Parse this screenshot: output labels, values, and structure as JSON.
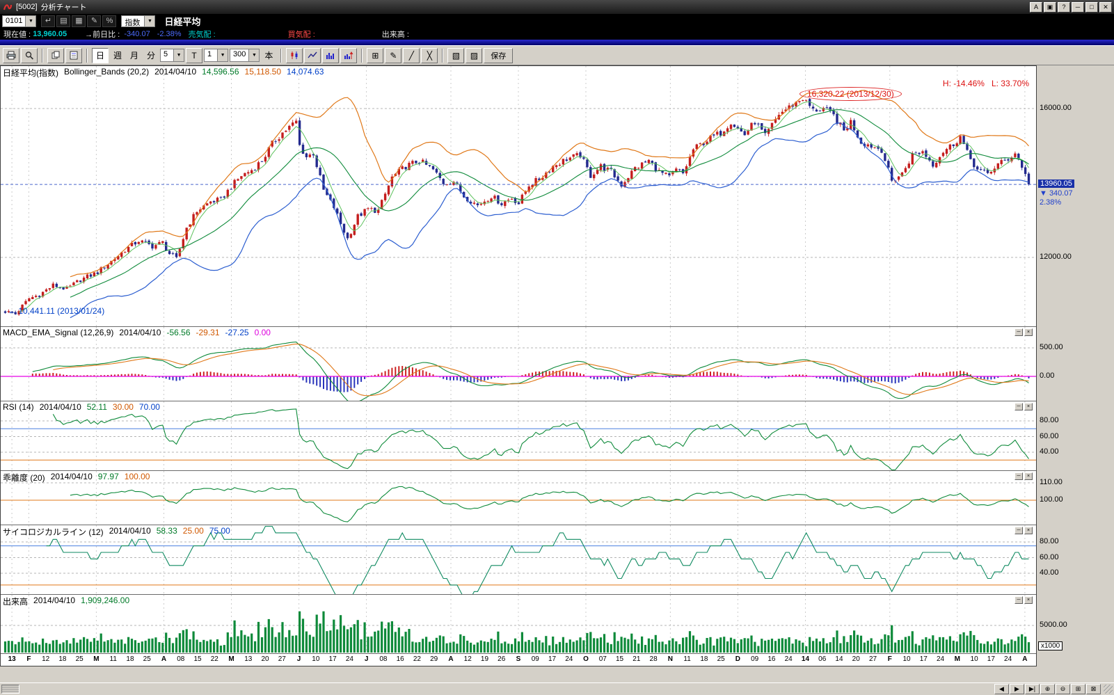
{
  "window": {
    "code": "[5002]",
    "title": "分析チャート",
    "buttons": [
      {
        "n": "font-size-button",
        "g": "A"
      },
      {
        "n": "window-style-button",
        "g": "▣"
      },
      {
        "n": "help-button",
        "g": "?"
      },
      {
        "n": "minimize-button",
        "g": "─"
      },
      {
        "n": "maximize-button",
        "g": "□"
      },
      {
        "n": "close-button",
        "g": "✕"
      }
    ]
  },
  "menubar": {
    "preset": "0101",
    "category": "指数",
    "symbol": "日経平均",
    "icons": [
      {
        "n": "return-icon",
        "g": "↵"
      },
      {
        "n": "list-icon",
        "g": "▤"
      },
      {
        "n": "board-icon",
        "g": "▦"
      },
      {
        "n": "edit-icon",
        "g": "✎"
      },
      {
        "n": "percent-icon",
        "g": "%"
      }
    ]
  },
  "infobar": {
    "current_label": "現在値 :",
    "current_value": "13,960.05",
    "change_label": "→前日比 :",
    "change_value": "-340.07",
    "change_pct": "-2.38%",
    "ask_label": "売気配 :",
    "bid_label": "買気配 :",
    "volume_label": "出来高 :"
  },
  "toolbar": {
    "day": "日",
    "week": "週",
    "month": "月",
    "minute": "分",
    "minute_unit": "5",
    "tick": "T",
    "interval": "1",
    "bars": "300",
    "bars_unit": "本",
    "save": "保存"
  },
  "icons": {
    "chevron_down": "▼",
    "grid": "⊞",
    "pencil": "✎",
    "trendline": "╱",
    "eraser": "╳",
    "layout_a": "▧",
    "layout_b": "▨"
  },
  "panel_controls": {
    "min": "─",
    "close": "×"
  },
  "panels": {
    "main": {
      "name": "日経平均(指数)",
      "study": "Bollinger_Bands (20,2)",
      "date": "2014/04/10",
      "values": [
        {
          "t": "14,596.56",
          "c": "green"
        },
        {
          "t": "15,118.50",
          "c": "orange"
        },
        {
          "t": "14,074.63",
          "c": "blue"
        }
      ],
      "high_low": "H: -14.46%   L: 33.70%",
      "ann_high": "16,320.22 (2013/12/30)",
      "ann_low": "← 10,441.11 (2013/01/24)",
      "price_tag": "13960.05",
      "change_tag": "▼ 340.07",
      "pct_tag": "2.38%",
      "y_labels": [
        {
          "t": "16000.00",
          "v": 16000
        },
        {
          "t": "12000.00",
          "v": 12000
        }
      ]
    },
    "macd": {
      "name": "MACD_EMA_Signal (12,26,9)",
      "date": "2014/04/10",
      "values": [
        {
          "t": "-56.56",
          "c": "green"
        },
        {
          "t": "-29.31",
          "c": "orange"
        },
        {
          "t": "-27.25",
          "c": "blue"
        },
        {
          "t": "0.00",
          "c": "magenta"
        }
      ],
      "y_labels": [
        {
          "t": "500.00",
          "v": 500
        },
        {
          "t": "0.00",
          "v": 0
        }
      ]
    },
    "rsi": {
      "name": "RSI (14)",
      "date": "2014/04/10",
      "values": [
        {
          "t": "52.11",
          "c": "green"
        },
        {
          "t": "30.00",
          "c": "orange"
        },
        {
          "t": "70.00",
          "c": "blue"
        }
      ],
      "y_labels": [
        {
          "t": "80.00",
          "v": 80
        },
        {
          "t": "60.00",
          "v": 60
        },
        {
          "t": "40.00",
          "v": 40
        }
      ]
    },
    "kairi": {
      "name": "乖離度 (20)",
      "date": "2014/04/10",
      "values": [
        {
          "t": "97.97",
          "c": "green"
        },
        {
          "t": "100.00",
          "c": "orange"
        }
      ],
      "y_labels": [
        {
          "t": "110.00",
          "v": 110
        },
        {
          "t": "100.00",
          "v": 100
        }
      ]
    },
    "psych": {
      "name": "サイコロジカルライン (12)",
      "date": "2014/04/10",
      "values": [
        {
          "t": "58.33",
          "c": "green"
        },
        {
          "t": "25.00",
          "c": "orange"
        },
        {
          "t": "75.00",
          "c": "blue"
        }
      ],
      "y_labels": [
        {
          "t": "80.00",
          "v": 80
        },
        {
          "t": "60.00",
          "v": 60
        },
        {
          "t": "40.00",
          "v": 40
        }
      ]
    },
    "vol": {
      "name": "出来高",
      "date": "2014/04/10",
      "values": [
        {
          "t": "1,909,246.00",
          "c": "green"
        }
      ],
      "y_labels": [
        {
          "t": "5000.00",
          "v": 5000
        }
      ],
      "unit": "x1000"
    }
  },
  "xaxis": {
    "labels": [
      {
        "t": "13",
        "m": 1
      },
      {
        "t": "F",
        "m": 1
      },
      {
        "t": "12",
        "m": 0
      },
      {
        "t": "18",
        "m": 0
      },
      {
        "t": "25",
        "m": 0
      },
      {
        "t": "M",
        "m": 1
      },
      {
        "t": "11",
        "m": 0
      },
      {
        "t": "18",
        "m": 0
      },
      {
        "t": "25",
        "m": 0
      },
      {
        "t": "A",
        "m": 1
      },
      {
        "t": "08",
        "m": 0
      },
      {
        "t": "15",
        "m": 0
      },
      {
        "t": "22",
        "m": 0
      },
      {
        "t": "M",
        "m": 1
      },
      {
        "t": "13",
        "m": 0
      },
      {
        "t": "20",
        "m": 0
      },
      {
        "t": "27",
        "m": 0
      },
      {
        "t": "J",
        "m": 1
      },
      {
        "t": "10",
        "m": 0
      },
      {
        "t": "17",
        "m": 0
      },
      {
        "t": "24",
        "m": 0
      },
      {
        "t": "J",
        "m": 1
      },
      {
        "t": "08",
        "m": 0
      },
      {
        "t": "16",
        "m": 0
      },
      {
        "t": "22",
        "m": 0
      },
      {
        "t": "29",
        "m": 0
      },
      {
        "t": "A",
        "m": 1
      },
      {
        "t": "12",
        "m": 0
      },
      {
        "t": "19",
        "m": 0
      },
      {
        "t": "26",
        "m": 0
      },
      {
        "t": "S",
        "m": 1
      },
      {
        "t": "09",
        "m": 0
      },
      {
        "t": "17",
        "m": 0
      },
      {
        "t": "24",
        "m": 0
      },
      {
        "t": "O",
        "m": 1
      },
      {
        "t": "07",
        "m": 0
      },
      {
        "t": "15",
        "m": 0
      },
      {
        "t": "21",
        "m": 0
      },
      {
        "t": "28",
        "m": 0
      },
      {
        "t": "N",
        "m": 1
      },
      {
        "t": "11",
        "m": 0
      },
      {
        "t": "18",
        "m": 0
      },
      {
        "t": "25",
        "m": 0
      },
      {
        "t": "D",
        "m": 1
      },
      {
        "t": "09",
        "m": 0
      },
      {
        "t": "16",
        "m": 0
      },
      {
        "t": "24",
        "m": 0
      },
      {
        "t": "14",
        "m": 1
      },
      {
        "t": "06",
        "m": 0
      },
      {
        "t": "14",
        "m": 0
      },
      {
        "t": "20",
        "m": 0
      },
      {
        "t": "27",
        "m": 0
      },
      {
        "t": "F",
        "m": 1
      },
      {
        "t": "10",
        "m": 0
      },
      {
        "t": "17",
        "m": 0
      },
      {
        "t": "24",
        "m": 0
      },
      {
        "t": "M",
        "m": 1
      },
      {
        "t": "10",
        "m": 0
      },
      {
        "t": "17",
        "m": 0
      },
      {
        "t": "24",
        "m": 0
      },
      {
        "t": "A",
        "m": 1
      }
    ]
  },
  "statusbar": {
    "buttons": [
      {
        "n": "scroll-left-button",
        "g": "◀"
      },
      {
        "n": "scroll-right-button",
        "g": "▶"
      },
      {
        "n": "jump-latest-button",
        "g": "▶|"
      },
      {
        "n": "zoom-in-button",
        "g": "⊕"
      },
      {
        "n": "zoom-out-button",
        "g": "⊖"
      },
      {
        "n": "grid-toggle-button",
        "g": "⊞"
      },
      {
        "n": "fit-window-button",
        "g": "⊠"
      }
    ]
  },
  "chart_data": {
    "type": "candlestick",
    "symbol": "日経平均(指数)",
    "bars": 300,
    "last_close": 13960.05,
    "last_change": -340.07,
    "last_change_pct": -2.38,
    "last_volume_x1000": 1909.246,
    "annotations": {
      "high": {
        "value": 16320.22,
        "date": "2013/12/30"
      },
      "low": {
        "value": 10441.11,
        "date": "2013/01/24"
      },
      "pct_from_high": -14.46,
      "pct_from_low": 33.7
    },
    "studies": {
      "bollinger": {
        "period": 20,
        "sigma": 2,
        "mid": 14596.56,
        "upper": 15118.5,
        "lower": 14074.63
      },
      "macd": {
        "fast": 12,
        "slow": 26,
        "signal": 9,
        "macd_value": -56.56,
        "signal_value": -29.31,
        "histogram": -27.25,
        "zero": 0
      },
      "rsi": {
        "period": 14,
        "value": 52.11,
        "lower": 30,
        "upper": 70
      },
      "kairi": {
        "period": 20,
        "value": 97.97,
        "base": 100
      },
      "psychological": {
        "period": 12,
        "value": 58.33,
        "lower": 25,
        "upper": 75
      },
      "volume": {
        "value": 1909246
      }
    },
    "axes": {
      "main": {
        "p1": [
          16000,
          61
        ],
        "p2": [
          12000,
          275
        ],
        "grid": [
          16000,
          12000
        ]
      },
      "macd": {
        "p1": [
          500,
          30
        ],
        "p2": [
          0,
          71
        ],
        "grid": [
          500
        ]
      },
      "rsi": {
        "p1": [
          80,
          28
        ],
        "p2": [
          40,
          73
        ],
        "grid": [
          80,
          60,
          40
        ]
      },
      "kairi": {
        "p1": [
          110,
          17
        ],
        "p2": [
          100,
          42
        ],
        "grid": [
          110,
          100
        ]
      },
      "psych": {
        "p1": [
          80,
          24
        ],
        "p2": [
          40,
          69
        ],
        "grid": [
          80,
          60,
          40
        ]
      },
      "vol": {
        "p1": [
          5000,
          44
        ],
        "p2": [
          0,
          83
        ],
        "grid": [
          5000
        ]
      }
    },
    "price_keypoints": [
      [
        0,
        10550
      ],
      [
        3,
        10480
      ],
      [
        7,
        10900
      ],
      [
        10,
        11000
      ],
      [
        14,
        11250
      ],
      [
        18,
        11150
      ],
      [
        22,
        11400
      ],
      [
        27,
        11600
      ],
      [
        31,
        11900
      ],
      [
        35,
        12200
      ],
      [
        39,
        12450
      ],
      [
        43,
        12300
      ],
      [
        46,
        12400
      ],
      [
        48,
        12100
      ],
      [
        50,
        11950
      ],
      [
        53,
        12800
      ],
      [
        56,
        13250
      ],
      [
        60,
        13500
      ],
      [
        63,
        13550
      ],
      [
        66,
        13900
      ],
      [
        69,
        14200
      ],
      [
        72,
        14350
      ],
      [
        75,
        14600
      ],
      [
        78,
        15050
      ],
      [
        81,
        15350
      ],
      [
        85,
        15650
      ],
      [
        86,
        15000
      ],
      [
        88,
        14700
      ],
      [
        90,
        14800
      ],
      [
        93,
        13800
      ],
      [
        96,
        13350
      ],
      [
        98,
        12900
      ],
      [
        100,
        12500
      ],
      [
        103,
        13100
      ],
      [
        106,
        13300
      ],
      [
        109,
        13250
      ],
      [
        113,
        14150
      ],
      [
        117,
        14450
      ],
      [
        121,
        14600
      ],
      [
        125,
        14350
      ],
      [
        128,
        14000
      ],
      [
        131,
        14050
      ],
      [
        134,
        13650
      ],
      [
        138,
        13400
      ],
      [
        142,
        13650
      ],
      [
        145,
        13450
      ],
      [
        148,
        13600
      ],
      [
        150,
        13450
      ],
      [
        153,
        13950
      ],
      [
        156,
        14100
      ],
      [
        160,
        14450
      ],
      [
        164,
        14650
      ],
      [
        168,
        14750
      ],
      [
        171,
        14200
      ],
      [
        174,
        14450
      ],
      [
        177,
        14300
      ],
      [
        180,
        13950
      ],
      [
        184,
        14400
      ],
      [
        188,
        14600
      ],
      [
        191,
        14300
      ],
      [
        194,
        14150
      ],
      [
        196,
        14350
      ],
      [
        198,
        14250
      ],
      [
        201,
        14900
      ],
      [
        205,
        15150
      ],
      [
        209,
        15350
      ],
      [
        212,
        15650
      ],
      [
        214,
        15450
      ],
      [
        216,
        15300
      ],
      [
        219,
        15650
      ],
      [
        222,
        15250
      ],
      [
        226,
        15850
      ],
      [
        230,
        16100
      ],
      [
        233,
        16280
      ],
      [
        236,
        15950
      ],
      [
        239,
        16000
      ],
      [
        242,
        15800
      ],
      [
        245,
        15400
      ],
      [
        247,
        15650
      ],
      [
        250,
        15100
      ],
      [
        253,
        15000
      ],
      [
        256,
        14900
      ],
      [
        259,
        14050
      ],
      [
        262,
        14250
      ],
      [
        265,
        14750
      ],
      [
        268,
        14850
      ],
      [
        271,
        14500
      ],
      [
        274,
        14850
      ],
      [
        277,
        15050
      ],
      [
        279,
        15250
      ],
      [
        281,
        14800
      ],
      [
        284,
        14350
      ],
      [
        287,
        14250
      ],
      [
        290,
        14500
      ],
      [
        293,
        14650
      ],
      [
        295,
        14800
      ],
      [
        297,
        14450
      ],
      [
        299,
        13960.05
      ]
    ]
  }
}
